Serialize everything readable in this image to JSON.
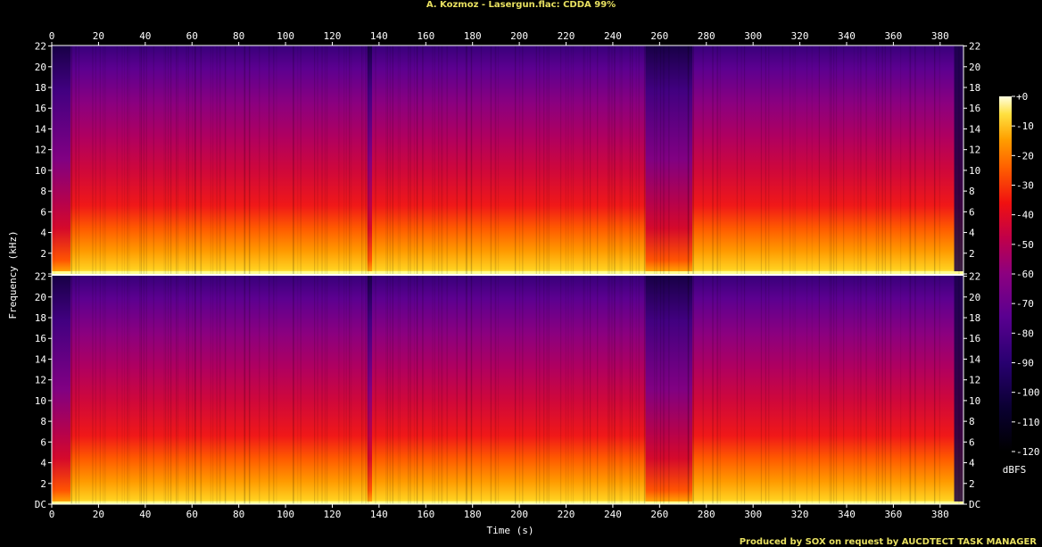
{
  "title": "A. Kozmoz - Lasergun.flac: CDDA 99%",
  "footer": "Produced by SOX on request by AUCDTECT TASK MANAGER",
  "chart_data": {
    "type": "heatmap",
    "title": "A. Kozmoz - Lasergun.flac: CDDA 99%",
    "xlabel": "Time (s)",
    "ylabel": "Frequency (kHz)",
    "xlim": [
      0,
      390
    ],
    "ylim": [
      0,
      22.05
    ],
    "x_ticks": [
      "0",
      "20",
      "40",
      "60",
      "80",
      "100",
      "120",
      "140",
      "160",
      "180",
      "200",
      "220",
      "240",
      "260",
      "280",
      "300",
      "320",
      "340",
      "360",
      "380"
    ],
    "y_ticks": [
      "DC",
      "2",
      "4",
      "6",
      "8",
      "10",
      "12",
      "14",
      "16",
      "18",
      "20",
      "22"
    ],
    "channels": 2,
    "colorbar": {
      "label": "dBFS",
      "ticks": [
        "+0",
        "-10",
        "-20",
        "-30",
        "-40",
        "-50",
        "-60",
        "-70",
        "-80",
        "-90",
        "-100",
        "-110",
        "-120"
      ],
      "range": [
        -120,
        0
      ]
    },
    "dropouts": [
      [
        0,
        8
      ],
      [
        135,
        137
      ],
      [
        254,
        274
      ]
    ],
    "colors": {
      "background": "#000000",
      "title": "#e8e060"
    }
  }
}
